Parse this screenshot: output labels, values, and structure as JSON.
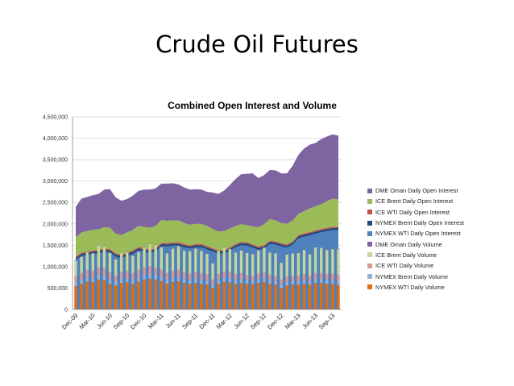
{
  "slide_title": "Crude Oil Futures",
  "chart_data": {
    "type": "area",
    "title": "Combined Open Interest and Volume",
    "xlabel": "",
    "ylabel": "",
    "ylim": [
      0,
      4500000
    ],
    "y_ticks": [
      "0",
      "500,000",
      "1,000,000",
      "1,500,000",
      "2,000,000",
      "2,500,000",
      "3,000,000",
      "3,500,000",
      "4,000,000",
      "4,500,000"
    ],
    "x_tick_labels": [
      "Dec-09",
      "Mar-10",
      "Jun-10",
      "Sep-10",
      "Dec-10",
      "Mar-11",
      "Jun-11",
      "Sep-11",
      "Dec-11",
      "Mar-12",
      "Jun-12",
      "Sep-12",
      "Dec-12",
      "Mar-13",
      "Jun-13",
      "Sep-13"
    ],
    "grid": "horizontal",
    "legend_position": "right",
    "x": [
      "Dec-09",
      "Jan-10",
      "Feb-10",
      "Mar-10",
      "Apr-10",
      "May-10",
      "Jun-10",
      "Jul-10",
      "Aug-10",
      "Sep-10",
      "Oct-10",
      "Nov-10",
      "Dec-10",
      "Jan-11",
      "Feb-11",
      "Mar-11",
      "Apr-11",
      "May-11",
      "Jun-11",
      "Jul-11",
      "Aug-11",
      "Sep-11",
      "Oct-11",
      "Nov-11",
      "Dec-11",
      "Jan-12",
      "Feb-12",
      "Mar-12",
      "Apr-12",
      "May-12",
      "Jun-12",
      "Jul-12",
      "Aug-12",
      "Sep-12",
      "Oct-12",
      "Nov-12",
      "Dec-12",
      "Jan-13",
      "Feb-13",
      "Mar-13",
      "Apr-13",
      "May-13",
      "Jun-13",
      "Jul-13",
      "Aug-13",
      "Sep-13",
      "Oct-13"
    ],
    "stacks": {
      "open_interest": [
        "DME Oman Daily Open Interest",
        "ICE Brent  Daily  Open Interest",
        "ICE WTI Daily Open Interest",
        "NYMEX Brent Daily Open Interest",
        "NYMEX WTI Daily Open Interest"
      ],
      "volume": [
        "DME Oman Daily Volume",
        "ICE Brent Daily Volume",
        "ICE WTI Daily Volume",
        "NYMEX Brent Daily Volume",
        "NYMEX WTI Daily Volume"
      ]
    },
    "series": [
      {
        "name": "DME Oman Daily Open Interest",
        "color": "#7E64A0",
        "values": [
          720000,
          790000,
          800000,
          810000,
          830000,
          880000,
          900000,
          850000,
          800000,
          780000,
          800000,
          820000,
          870000,
          890000,
          880000,
          850000,
          870000,
          870000,
          840000,
          830000,
          820000,
          810000,
          800000,
          800000,
          850000,
          880000,
          950000,
          1020000,
          1100000,
          1170000,
          1200000,
          1240000,
          1150000,
          1150000,
          1150000,
          1170000,
          1160000,
          1180000,
          1280000,
          1380000,
          1460000,
          1490000,
          1480000,
          1520000,
          1510000,
          1500000,
          1490000
        ]
      },
      {
        "name": "ICE Brent  Daily  Open Interest",
        "color": "#9BBB59",
        "values": [
          450000,
          470000,
          480000,
          480000,
          480000,
          490000,
          500000,
          460000,
          460000,
          470000,
          480000,
          490000,
          500000,
          510000,
          520000,
          530000,
          520000,
          510000,
          510000,
          490000,
          480000,
          470000,
          470000,
          470000,
          450000,
          440000,
          440000,
          440000,
          420000,
          410000,
          400000,
          420000,
          450000,
          490000,
          500000,
          490000,
          470000,
          480000,
          490000,
          490000,
          520000,
          550000,
          560000,
          580000,
          620000,
          660000,
          630000
        ]
      },
      {
        "name": "ICE WTI Daily Open Interest",
        "color": "#C0504D",
        "values": [
          30000,
          30000,
          30000,
          30000,
          30000,
          30000,
          30000,
          30000,
          30000,
          30000,
          30000,
          30000,
          30000,
          30000,
          30000,
          30000,
          30000,
          30000,
          30000,
          30000,
          30000,
          30000,
          30000,
          30000,
          30000,
          30000,
          30000,
          30000,
          30000,
          30000,
          30000,
          30000,
          30000,
          30000,
          30000,
          30000,
          30000,
          30000,
          30000,
          30000,
          30000,
          30000,
          30000,
          30000,
          30000,
          30000,
          30000
        ]
      },
      {
        "name": "NYMEX Brent Daily Open Interest",
        "color": "#1F497D",
        "values": [
          50000,
          50000,
          50000,
          50000,
          50000,
          50000,
          50000,
          50000,
          50000,
          50000,
          50000,
          50000,
          50000,
          50000,
          50000,
          50000,
          50000,
          50000,
          50000,
          50000,
          50000,
          50000,
          50000,
          50000,
          50000,
          50000,
          50000,
          50000,
          50000,
          50000,
          50000,
          50000,
          50000,
          50000,
          50000,
          50000,
          50000,
          50000,
          50000,
          50000,
          50000,
          50000,
          50000,
          50000,
          50000,
          50000,
          50000
        ]
      },
      {
        "name": "NYMEX WTI Daily Open Interest",
        "color": "#4F81BD",
        "values": [
          1150000,
          1250000,
          1270000,
          1300000,
          1310000,
          1350000,
          1330000,
          1230000,
          1200000,
          1250000,
          1300000,
          1380000,
          1350000,
          1320000,
          1350000,
          1480000,
          1470000,
          1490000,
          1490000,
          1450000,
          1420000,
          1450000,
          1450000,
          1400000,
          1350000,
          1300000,
          1310000,
          1370000,
          1450000,
          1500000,
          1490000,
          1440000,
          1390000,
          1420000,
          1530000,
          1510000,
          1470000,
          1440000,
          1510000,
          1660000,
          1700000,
          1730000,
          1770000,
          1800000,
          1830000,
          1850000,
          1860000
        ]
      },
      {
        "name": "DME Oman Daily Volume",
        "color": "#8064A2",
        "values": [
          10000,
          10000,
          10000,
          10000,
          10000,
          10000,
          10000,
          10000,
          10000,
          10000,
          10000,
          10000,
          10000,
          10000,
          10000,
          10000,
          10000,
          10000,
          10000,
          10000,
          10000,
          10000,
          10000,
          10000,
          10000,
          10000,
          10000,
          10000,
          10000,
          10000,
          10000,
          10000,
          10000,
          10000,
          10000,
          10000,
          10000,
          10000,
          10000,
          10000,
          10000,
          10000,
          10000,
          10000,
          10000,
          10000,
          10000
        ]
      },
      {
        "name": "ICE Brent Daily Volume",
        "color": "#C3D69B",
        "values": [
          360000,
          380000,
          420000,
          410000,
          520000,
          500000,
          460000,
          380000,
          460000,
          440000,
          400000,
          420000,
          460000,
          520000,
          530000,
          520000,
          460000,
          520000,
          550000,
          500000,
          520000,
          540000,
          520000,
          480000,
          380000,
          540000,
          560000,
          540000,
          500000,
          530000,
          510000,
          500000,
          540000,
          570000,
          520000,
          520000,
          400000,
          520000,
          520000,
          530000,
          560000,
          500000,
          600000,
          590000,
          560000,
          580000,
          600000
        ]
      },
      {
        "name": "ICE WTI Daily Volume",
        "color": "#D99694",
        "values": [
          150000,
          160000,
          180000,
          170000,
          180000,
          190000,
          170000,
          150000,
          160000,
          170000,
          160000,
          180000,
          190000,
          190000,
          180000,
          170000,
          160000,
          160000,
          170000,
          160000,
          150000,
          160000,
          160000,
          150000,
          130000,
          140000,
          150000,
          140000,
          140000,
          140000,
          130000,
          120000,
          130000,
          140000,
          130000,
          130000,
          120000,
          120000,
          130000,
          130000,
          140000,
          130000,
          140000,
          140000,
          140000,
          140000,
          140000
        ]
      },
      {
        "name": "NYMEX Brent Daily Volume",
        "color": "#95B3D7",
        "values": [
          80000,
          90000,
          90000,
          90000,
          100000,
          100000,
          90000,
          80000,
          90000,
          90000,
          90000,
          90000,
          100000,
          100000,
          100000,
          100000,
          90000,
          100000,
          100000,
          90000,
          90000,
          100000,
          90000,
          90000,
          70000,
          90000,
          90000,
          90000,
          90000,
          90000,
          80000,
          80000,
          90000,
          90000,
          80000,
          80000,
          70000,
          80000,
          80000,
          80000,
          90000,
          80000,
          90000,
          90000,
          90000,
          90000,
          90000
        ]
      },
      {
        "name": "NYMEX WTI Daily Volume",
        "color": "#E46C0A",
        "values": [
          550000,
          600000,
          650000,
          640000,
          700000,
          680000,
          600000,
          560000,
          620000,
          640000,
          600000,
          650000,
          700000,
          720000,
          700000,
          660000,
          600000,
          640000,
          660000,
          620000,
          600000,
          620000,
          600000,
          580000,
          500000,
          600000,
          650000,
          640000,
          600000,
          620000,
          600000,
          590000,
          620000,
          640000,
          600000,
          580000,
          500000,
          560000,
          580000,
          580000,
          600000,
          580000,
          620000,
          620000,
          600000,
          600000,
          580000
        ]
      }
    ]
  }
}
